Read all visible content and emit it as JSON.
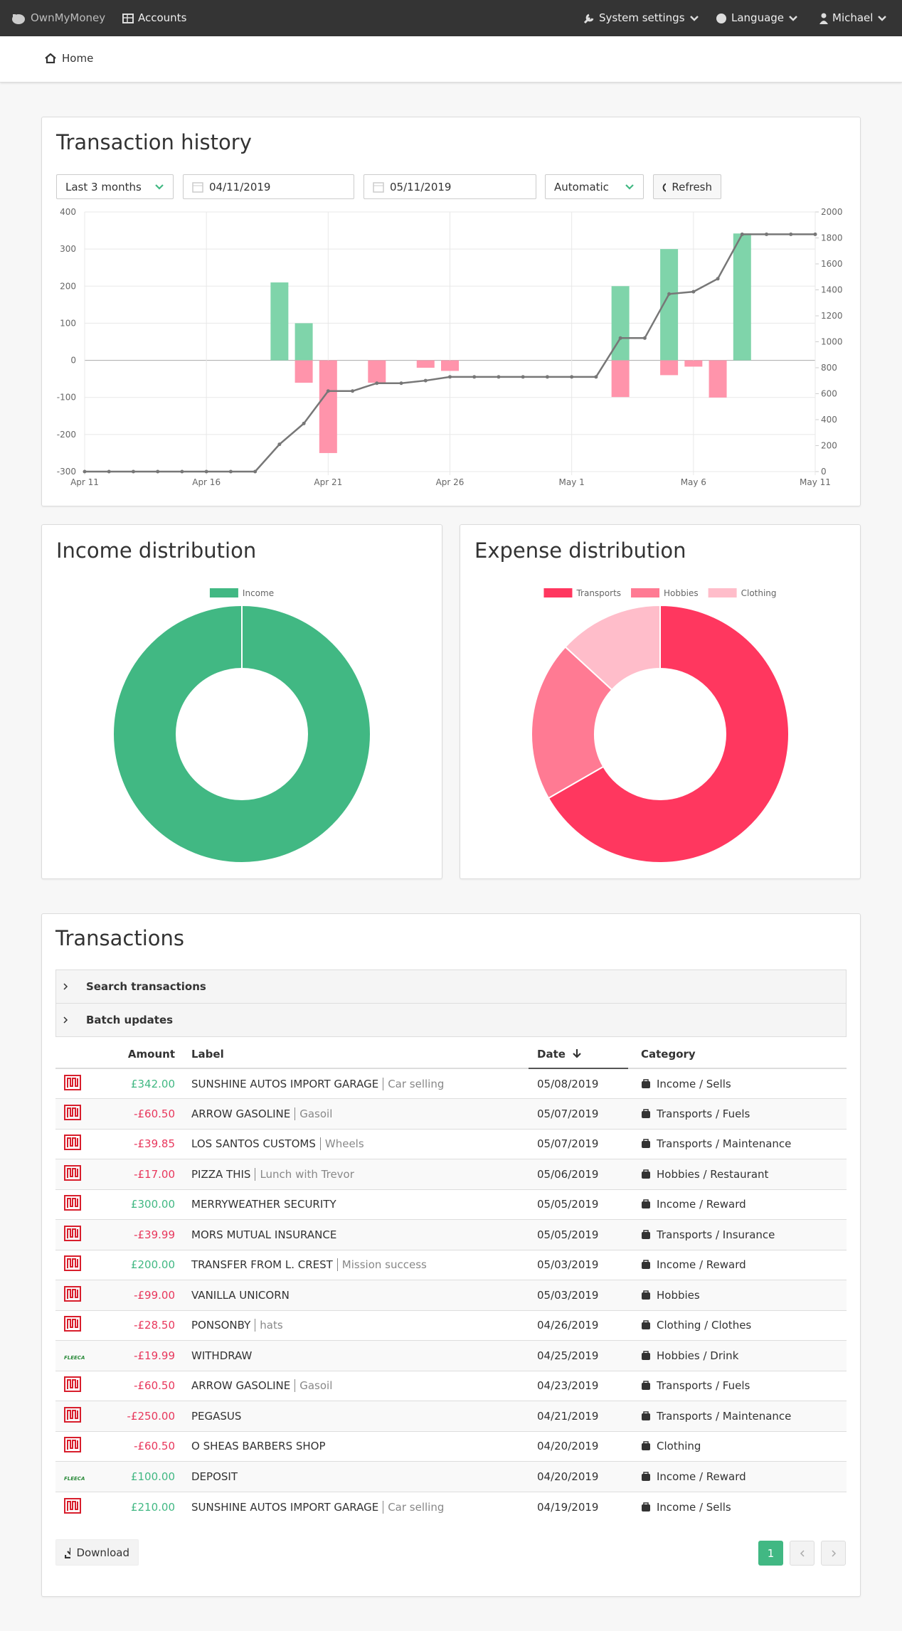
{
  "navbar": {
    "brand": "OwnMyMoney",
    "accounts": "Accounts",
    "system_settings": "System settings",
    "language": "Language",
    "user": "Michael"
  },
  "breadcrumb": {
    "home": "Home"
  },
  "history": {
    "title": "Transaction history",
    "period": "Last 3 months",
    "start_date": "04/11/2019",
    "end_date": "05/11/2019",
    "grouping": "Automatic",
    "refresh": "Refresh"
  },
  "income_distribution": {
    "title": "Income distribution"
  },
  "expense_distribution": {
    "title": "Expense distribution"
  },
  "chart_data": [
    {
      "type": "bar",
      "categories": [
        "Apr 11",
        null,
        null,
        null,
        null,
        "Apr 16",
        null,
        null,
        null,
        null,
        "Apr 21",
        null,
        null,
        null,
        null,
        "Apr 26",
        null,
        null,
        null,
        null,
        "May 1",
        null,
        null,
        null,
        null,
        "May 6",
        null,
        null,
        null,
        null,
        "May 11"
      ],
      "series": [
        {
          "color": "#7fd4aa",
          "values": [
            null,
            null,
            null,
            null,
            null,
            null,
            null,
            null,
            210,
            100,
            null,
            null,
            null,
            null,
            null,
            null,
            null,
            null,
            null,
            null,
            null,
            null,
            200,
            null,
            300,
            null,
            null,
            342,
            null,
            null,
            null
          ]
        },
        {
          "color": "#ff94ab",
          "values": [
            null,
            null,
            null,
            null,
            null,
            null,
            null,
            null,
            null,
            -60.5,
            -250,
            null,
            -60.5,
            null,
            -19.99,
            -28.5,
            null,
            null,
            null,
            null,
            null,
            null,
            -99,
            null,
            -39.99,
            -17,
            -100.35,
            null,
            null,
            null,
            null
          ]
        },
        {
          "type": "line",
          "axis": "y2",
          "color": "#777777",
          "values": [
            0,
            0,
            0,
            0,
            0,
            0,
            0,
            0,
            210,
            370.5,
            620.5,
            620.5,
            681,
            681,
            700.99,
            729.49,
            729.49,
            729.49,
            729.49,
            729.49,
            729.49,
            729.49,
            1028.49,
            1028.49,
            1368.48,
            1385.48,
            1485.83,
            1827.83,
            1827.83,
            1827.83,
            1827.83
          ]
        }
      ],
      "ylim": [
        -300,
        400
      ],
      "yticks": [
        -300,
        -200,
        -100,
        0,
        100,
        200,
        300,
        400
      ],
      "y2lim": [
        0,
        2000
      ],
      "y2ticks": [
        0,
        200,
        400,
        600,
        800,
        1000,
        1200,
        1400,
        1600,
        1800,
        2000
      ],
      "grid": true
    },
    {
      "type": "doughnut",
      "categories": [
        "Income"
      ],
      "values": [
        1152
      ],
      "colors": [
        "#41b883"
      ]
    },
    {
      "type": "doughnut",
      "categories": [
        "Transports",
        "Hobbies",
        "Clothing"
      ],
      "values": [
        450.84,
        135.99,
        89
      ],
      "colors": [
        "#ff375f",
        "#ff7a93",
        "#ffbdca"
      ]
    }
  ],
  "transactions": {
    "title": "Transactions",
    "search": "Search transactions",
    "batch": "Batch updates",
    "columns": {
      "amount": "Amount",
      "label": "Label",
      "date": "Date",
      "category": "Category"
    },
    "rows": [
      {
        "amount": "£342.00",
        "label": "SUNSHINE AUTOS IMPORT GARAGE",
        "note": "Car selling",
        "date": "05/08/2019",
        "category": "Income / Sells"
      },
      {
        "amount": "-£60.50",
        "label": "ARROW GASOLINE",
        "note": "Gasoil",
        "date": "05/07/2019",
        "category": "Transports / Fuels"
      },
      {
        "amount": "-£39.85",
        "label": "LOS SANTOS CUSTOMS",
        "note": "Wheels",
        "date": "05/07/2019",
        "category": "Transports / Maintenance"
      },
      {
        "amount": "-£17.00",
        "label": "PIZZA THIS",
        "note": "Lunch with Trevor",
        "date": "05/06/2019",
        "category": "Hobbies / Restaurant"
      },
      {
        "amount": "£300.00",
        "label": "MERRYWEATHER SECURITY",
        "date": "05/05/2019",
        "category": "Income / Reward"
      },
      {
        "amount": "-£39.99",
        "label": "MORS MUTUAL INSURANCE",
        "date": "05/05/2019",
        "category": "Transports / Insurance"
      },
      {
        "amount": "£200.00",
        "label": "TRANSFER FROM L. CREST",
        "note": "Mission success",
        "date": "05/03/2019",
        "category": "Income / Reward"
      },
      {
        "amount": "-£99.00",
        "label": "VANILLA UNICORN",
        "date": "05/03/2019",
        "category": "Hobbies"
      },
      {
        "amount": "-£28.50",
        "label": "PONSONBY",
        "note": "hats",
        "date": "04/26/2019",
        "category": "Clothing / Clothes"
      },
      {
        "bank": "FLEECA",
        "amount": "-£19.99",
        "label": "WITHDRAW",
        "date": "04/25/2019",
        "category": "Hobbies / Drink"
      },
      {
        "amount": "-£60.50",
        "label": "ARROW GASOLINE",
        "note": "Gasoil",
        "date": "04/23/2019",
        "category": "Transports / Fuels"
      },
      {
        "amount": "-£250.00",
        "label": "PEGASUS",
        "date": "04/21/2019",
        "category": "Transports / Maintenance"
      },
      {
        "amount": "-£60.50",
        "label": "O SHEAS BARBERS SHOP",
        "date": "04/20/2019",
        "category": "Clothing"
      },
      {
        "bank": "FLEECA",
        "amount": "£100.00",
        "label": "DEPOSIT",
        "date": "04/20/2019",
        "category": "Income / Reward"
      },
      {
        "amount": "£210.00",
        "label": "SUNSHINE AUTOS IMPORT GARAGE",
        "note": "Car selling",
        "date": "04/19/2019",
        "category": "Income / Sells"
      }
    ],
    "download": "Download",
    "page": 1
  }
}
